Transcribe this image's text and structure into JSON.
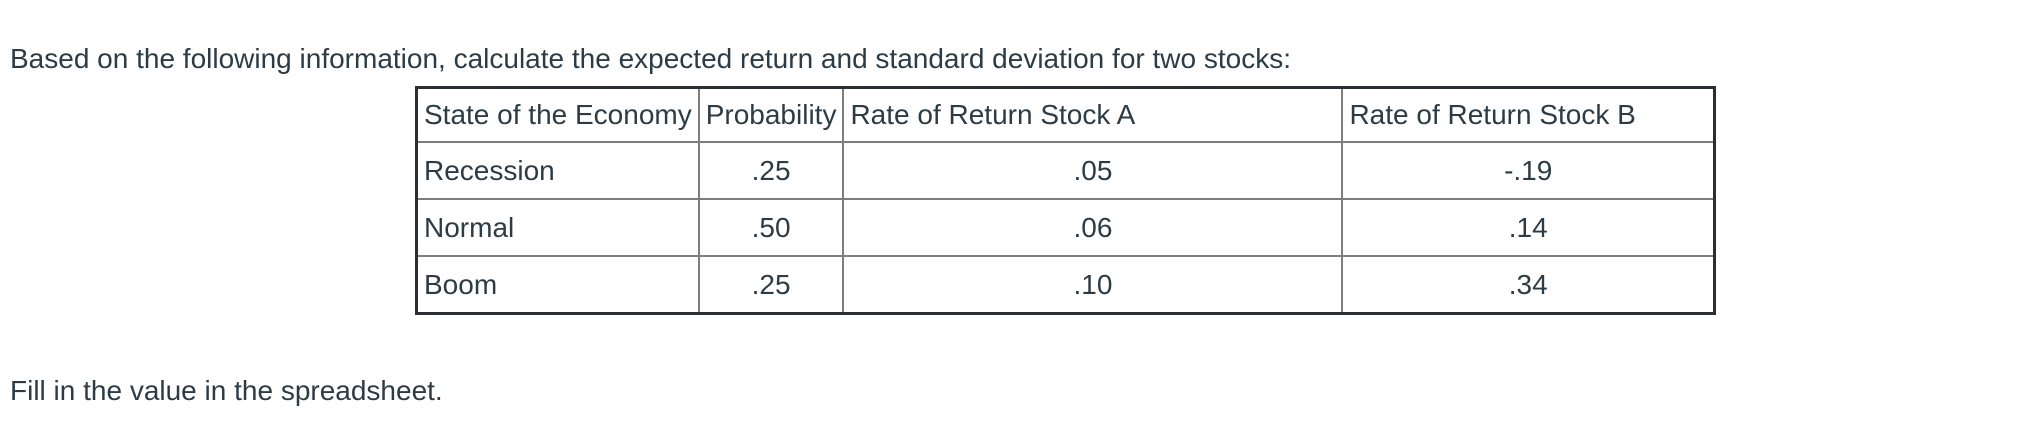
{
  "question": {
    "intro": "Based on the following information, calculate the expected return and standard deviation for two stocks:",
    "footer": "Fill in the value in the spreadsheet."
  },
  "table": {
    "headers": [
      "State of the Economy",
      "Probability",
      "Rate of Return Stock A",
      "Rate of Return Stock B"
    ],
    "rows": [
      {
        "state": "Recession",
        "probability": ".25",
        "stock_a": ".05",
        "stock_b": "-.19"
      },
      {
        "state": "Normal",
        "probability": ".50",
        "stock_a": ".06",
        "stock_b": ".14"
      },
      {
        "state": "Boom",
        "probability": ".25",
        "stock_a": ".10",
        "stock_b": ".34"
      }
    ]
  },
  "colors": {
    "text": "#2d3b45",
    "outer_border": "#2b2f33",
    "inner_border": "#7d7d7d",
    "background": "#ffffff"
  }
}
